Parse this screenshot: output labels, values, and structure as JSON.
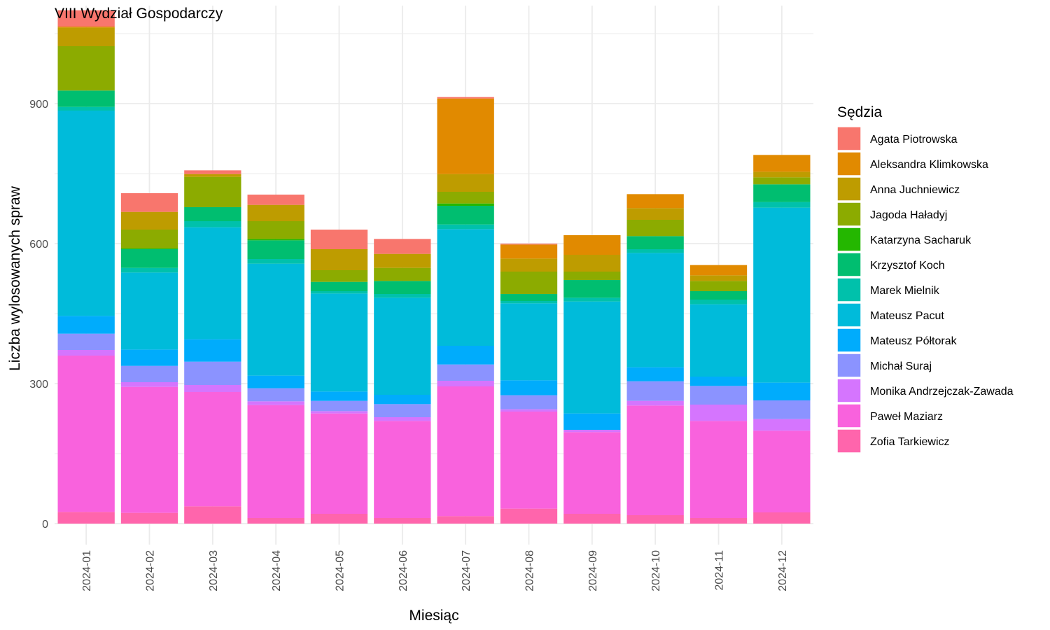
{
  "chart_data": {
    "type": "bar",
    "stacked": true,
    "title": "VIII Wydział Gospodarczy",
    "xlabel": "Miesiąc",
    "ylabel": "Liczba wylosowanych spraw",
    "ylim": [
      -45,
      1110
    ],
    "yticks": [
      0,
      300,
      600,
      900
    ],
    "grid": true,
    "legend_title": "Sędzia",
    "legend_position": "right",
    "categories": [
      "2024-01",
      "2024-02",
      "2024-03",
      "2024-04",
      "2024-05",
      "2024-06",
      "2024-07",
      "2024-08",
      "2024-09",
      "2024-10",
      "2024-11",
      "2024-12"
    ],
    "series": [
      {
        "name": "Agata Piotrowska",
        "color": "#F8766D",
        "values": [
          35,
          40,
          8,
          22,
          42,
          32,
          3,
          2,
          0,
          0,
          0,
          0
        ]
      },
      {
        "name": "Aleksandra Klimkowska",
        "color": "#E18A00",
        "values": [
          2,
          0,
          0,
          0,
          0,
          0,
          162,
          30,
          42,
          30,
          22,
          36
        ]
      },
      {
        "name": "Anna Juchniewicz",
        "color": "#BE9C00",
        "values": [
          40,
          38,
          6,
          35,
          45,
          30,
          38,
          28,
          36,
          25,
          12,
          12
        ]
      },
      {
        "name": "Jagoda Haładyj",
        "color": "#8CAB00",
        "values": [
          95,
          40,
          65,
          38,
          25,
          28,
          25,
          48,
          18,
          35,
          22,
          15
        ]
      },
      {
        "name": "Katarzyna Sacharuk",
        "color": "#24B700",
        "values": [
          0,
          2,
          0,
          3,
          0,
          0,
          5,
          0,
          0,
          0,
          0,
          0
        ]
      },
      {
        "name": "Krzysztof Koch",
        "color": "#00BE70",
        "values": [
          35,
          40,
          30,
          40,
          20,
          28,
          40,
          15,
          38,
          28,
          18,
          38
        ]
      },
      {
        "name": "Marek Mielnik",
        "color": "#00C1AB",
        "values": [
          8,
          10,
          13,
          10,
          5,
          8,
          10,
          5,
          8,
          8,
          10,
          12
        ]
      },
      {
        "name": "Mateusz Pacut",
        "color": "#00BBDA",
        "values": [
          440,
          165,
          240,
          240,
          210,
          208,
          250,
          165,
          240,
          245,
          155,
          375
        ]
      },
      {
        "name": "Mateusz Półtorak",
        "color": "#00ACFC",
        "values": [
          38,
          35,
          48,
          27,
          20,
          20,
          40,
          32,
          35,
          30,
          20,
          38
        ]
      },
      {
        "name": "Michał Suraj",
        "color": "#8B93FF",
        "values": [
          35,
          35,
          50,
          28,
          22,
          28,
          35,
          30,
          0,
          42,
          40,
          40
        ]
      },
      {
        "name": "Monika Andrzejczak-Zawada",
        "color": "#D575FE",
        "values": [
          12,
          10,
          15,
          8,
          5,
          8,
          12,
          5,
          5,
          10,
          35,
          25
        ]
      },
      {
        "name": "Paweł Maziarz",
        "color": "#F962DD",
        "values": [
          335,
          270,
          245,
          242,
          215,
          208,
          278,
          208,
          175,
          235,
          208,
          175
        ]
      },
      {
        "name": "Zofia Tarkiewicz",
        "color": "#FF65AC",
        "values": [
          25,
          23,
          37,
          12,
          21,
          12,
          16,
          32,
          21,
          18,
          12,
          24
        ]
      }
    ]
  }
}
